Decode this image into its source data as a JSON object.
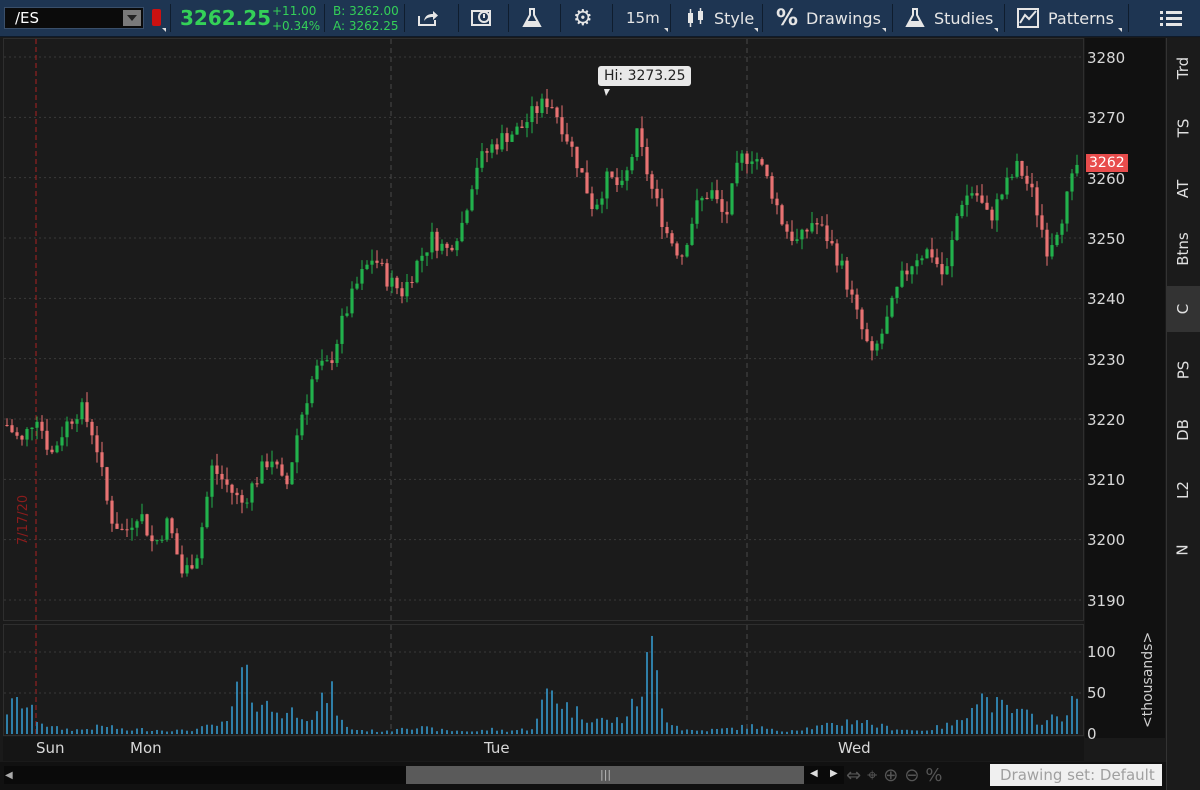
{
  "toolbar": {
    "symbol": "/ES",
    "last_price": "3262.25",
    "change": "+11.00",
    "change_pct": "+0.34%",
    "bid": "B: 3262.00",
    "ask": "A: 3262.25",
    "timeframe": "15m",
    "style_label": "Style",
    "drawings_label": "Drawings",
    "studies_label": "Studies",
    "patterns_label": "Patterns"
  },
  "chart": {
    "high_label": "Hi: 3273.25",
    "last_label": "3262",
    "date_marker": "7/17/20",
    "y_ticks": [
      "3280",
      "3270",
      "3260",
      "3250",
      "3240",
      "3230",
      "3220",
      "3210",
      "3200",
      "3190"
    ],
    "x_ticks": [
      "Sun",
      "Mon",
      "Tue",
      "Wed"
    ],
    "volume_ticks": [
      "100",
      "50",
      "0"
    ],
    "volume_unit": "<thousands>"
  },
  "sidebar": {
    "tabs": [
      "Trd",
      "TS",
      "AT",
      "Btns",
      "C",
      "PS",
      "DB",
      "L2",
      "N"
    ],
    "active": "C"
  },
  "footer": {
    "drawing_set": "Drawing set: Default"
  },
  "colors": {
    "up": "#22b14c",
    "down": "#e87272",
    "volume": "#2f7fa8",
    "toolbar": "#1e3552"
  },
  "chart_data": {
    "type": "candlestick",
    "ylim": [
      3188,
      3282
    ],
    "x": [
      "Sun",
      "Mon",
      "Tue",
      "Wed"
    ],
    "path": [
      3219,
      3216,
      3221,
      3214,
      3219,
      3222,
      3217,
      3204,
      3201,
      3205,
      3199,
      3203,
      3194,
      3198,
      3212,
      3209,
      3206,
      3210,
      3214,
      3208,
      3220,
      3228,
      3229,
      3237,
      3243,
      3247,
      3243,
      3241,
      3246,
      3250,
      3248,
      3252,
      3262,
      3265,
      3267,
      3268,
      3271,
      3273,
      3268,
      3262,
      3255,
      3260,
      3258,
      3267,
      3258,
      3251,
      3247,
      3255,
      3258,
      3253,
      3263,
      3264,
      3259,
      3252,
      3249,
      3253,
      3250,
      3245,
      3237,
      3230,
      3236,
      3243,
      3247,
      3248,
      3243,
      3256,
      3258,
      3253,
      3258,
      3262,
      3257,
      3248,
      3254,
      3262
    ],
    "volume_path": [
      30,
      40,
      20,
      8,
      6,
      5,
      8,
      10,
      4,
      6,
      5,
      5,
      4,
      6,
      10,
      12,
      70,
      45,
      30,
      25,
      30,
      20,
      55,
      8,
      5,
      4,
      3,
      10,
      8,
      6,
      4,
      4,
      3,
      6,
      4,
      5,
      8,
      60,
      35,
      25,
      20,
      15,
      18,
      40,
      100,
      20,
      6,
      4,
      5,
      6,
      8,
      10,
      5,
      4,
      6,
      8,
      10,
      14,
      18,
      12,
      8,
      6,
      4,
      6,
      10,
      14,
      50,
      40,
      30,
      25,
      20,
      15,
      25,
      40
    ]
  }
}
